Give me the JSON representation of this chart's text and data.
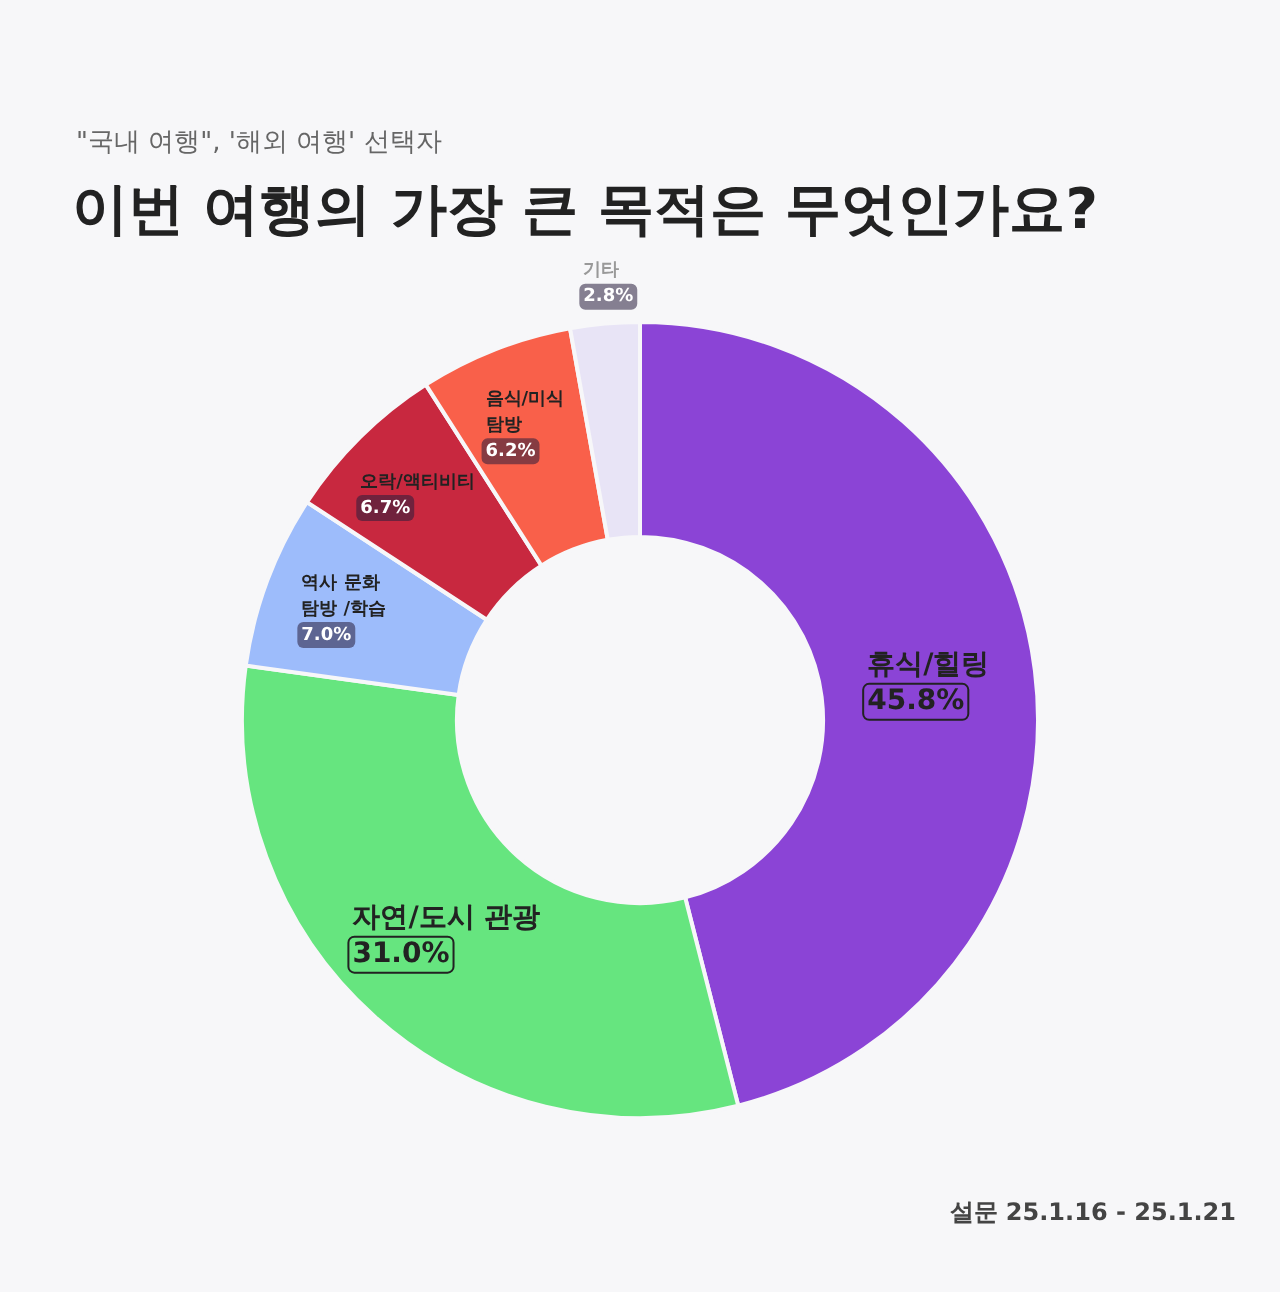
{
  "chart_data": {
    "type": "donut",
    "subtitle": "\"국내 여행\", '해외 여행' 선택자",
    "title": "이번 여행의 가장 큰 목적은 무엇인가요?",
    "categories": [
      "휴식/힐링",
      "자연/도시 관광",
      "역사 문화 탐방 /학습",
      "오락/액티비티",
      "음식/미식 탐방",
      "기타"
    ],
    "values": [
      45.8,
      31.0,
      7.0,
      6.7,
      6.2,
      2.8
    ],
    "value_labels": [
      "45.8%",
      "31.0%",
      "7.0%",
      "6.7%",
      "6.2%",
      "2.8%"
    ],
    "colors": [
      "#8b44d6",
      "#66e57f",
      "#9dbcfb",
      "#c8283f",
      "#f9604a",
      "#e8e4f6"
    ],
    "annotations": [
      "설문 25.1.16 - 25.1.21"
    ],
    "legend": false
  }
}
